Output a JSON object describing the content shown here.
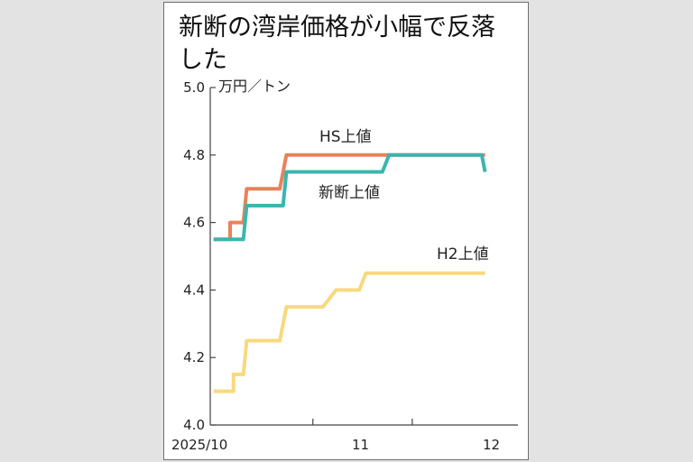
{
  "title": "新断の湾岸価格が小幅で反落した",
  "chart_data": {
    "type": "line",
    "ylabel": "万円／トン",
    "ylim": [
      4.0,
      5.0
    ],
    "yticks": [
      "4.0",
      "4.2",
      "4.4",
      "4.6",
      "4.8",
      "5.0"
    ],
    "xlabels": [
      "2025/10",
      "11",
      "12"
    ],
    "series": [
      {
        "name": "HS上値",
        "color": "#e8825a",
        "points": [
          [
            1,
            4.55
          ],
          [
            6,
            4.55
          ],
          [
            6,
            4.6
          ],
          [
            10,
            4.6
          ],
          [
            11,
            4.7
          ],
          [
            21,
            4.7
          ],
          [
            23,
            4.8
          ],
          [
            61,
            4.8
          ],
          [
            72,
            4.8
          ],
          [
            83,
            4.8
          ]
        ]
      },
      {
        "name": "新断上値",
        "color": "#3bb5ae",
        "points": [
          [
            1,
            4.55
          ],
          [
            10,
            4.55
          ],
          [
            11,
            4.65
          ],
          [
            22,
            4.65
          ],
          [
            23,
            4.75
          ],
          [
            52,
            4.75
          ],
          [
            54,
            4.8
          ],
          [
            72,
            4.8
          ],
          [
            82,
            4.8
          ],
          [
            83,
            4.75
          ]
        ]
      },
      {
        "name": "H2上値",
        "color": "#f8d97e",
        "points": [
          [
            1,
            4.1
          ],
          [
            7,
            4.1
          ],
          [
            7,
            4.15
          ],
          [
            10,
            4.15
          ],
          [
            11,
            4.25
          ],
          [
            21,
            4.25
          ],
          [
            23,
            4.35
          ],
          [
            34,
            4.35
          ],
          [
            38,
            4.4
          ],
          [
            45,
            4.4
          ],
          [
            47,
            4.45
          ],
          [
            83,
            4.45
          ]
        ]
      }
    ]
  }
}
